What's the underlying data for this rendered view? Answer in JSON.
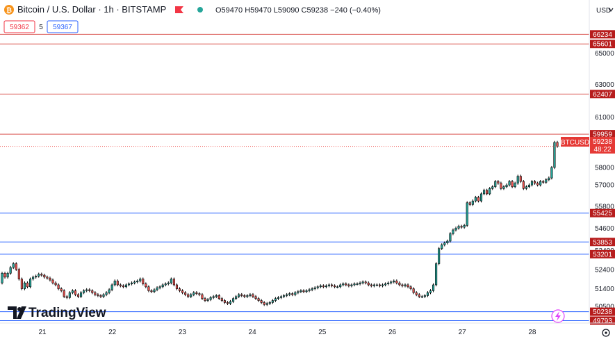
{
  "header": {
    "symbol_title": "Bitcoin / U.S. Dollar · 1h · BITSTAMP",
    "ohlc": "O59470 H59470 L59090 C59238 −240 (−0.40%)",
    "currency": "USD",
    "bid": "59362",
    "spread": "5",
    "ask": "59367"
  },
  "watermark": {
    "text": "TradingView"
  },
  "price_label": {
    "symbol": "BTCUSD",
    "value": "59238",
    "countdown": "48:22"
  },
  "colors": {
    "up": "#26a69a",
    "down": "#ef5350",
    "candle_body": "#ffffff",
    "wick": "#000000",
    "resistance": "#d9534f",
    "support": "#2962ff",
    "label_bg": "#b71c1c",
    "price_label_bg": "#e53935"
  },
  "chart_data": {
    "type": "candlestick",
    "title": "Bitcoin / U.S. Dollar · 1h · BITSTAMP",
    "y_axis": {
      "scale": "log",
      "range": [
        49500,
        67500
      ],
      "tick_labels": [
        "65000",
        "63000",
        "61000",
        "58000",
        "57000",
        "55800",
        "54600",
        "53400",
        "52400",
        "51400",
        "50500"
      ]
    },
    "x_axis": {
      "tick_labels": [
        "21",
        "22",
        "23",
        "24",
        "25",
        "26",
        "27",
        "28"
      ]
    },
    "levels": [
      {
        "value": "66234",
        "kind": "resistance"
      },
      {
        "value": "65601",
        "kind": "resistance"
      },
      {
        "value": "62407",
        "kind": "resistance"
      },
      {
        "value": "59959",
        "kind": "resistance"
      },
      {
        "value": "55425",
        "kind": "support"
      },
      {
        "value": "53853",
        "kind": "support"
      },
      {
        "value": "53201",
        "kind": "support"
      },
      {
        "value": "50238",
        "kind": "support"
      },
      {
        "value": "49793",
        "kind": "support"
      }
    ],
    "closes": [
      52200,
      52000,
      52200,
      52500,
      52700,
      52400,
      51900,
      51400,
      51700,
      51500,
      51900,
      52000,
      52050,
      52150,
      52100,
      52000,
      51950,
      51850,
      51700,
      51600,
      51400,
      51300,
      51000,
      50950,
      51200,
      51300,
      51100,
      51000,
      51200,
      51300,
      51350,
      51300,
      51200,
      51100,
      51050,
      51000,
      51100,
      51200,
      51350,
      51600,
      51800,
      51600,
      51550,
      51500,
      51600,
      51650,
      51700,
      51750,
      51800,
      51900,
      51650,
      51500,
      51300,
      51250,
      51350,
      51450,
      51500,
      51600,
      51650,
      51700,
      51900,
      51600,
      51400,
      51300,
      51200,
      51100,
      51000,
      51100,
      51200,
      51150,
      51100,
      50900,
      50800,
      50850,
      50950,
      51000,
      51050,
      50900,
      50800,
      50700,
      50650,
      50750,
      50900,
      51000,
      51100,
      51050,
      51000,
      51050,
      51100,
      51000,
      50900,
      50800,
      50700,
      50600,
      50650,
      50700,
      50800,
      50900,
      50950,
      51000,
      51050,
      51100,
      51150,
      51100,
      51200,
      51250,
      51300,
      51250,
      51300,
      51350,
      51400,
      51450,
      51500,
      51550,
      51500,
      51550,
      51600,
      51550,
      51500,
      51500,
      51600,
      51650,
      51600,
      51550,
      51600,
      51650,
      51650,
      51700,
      51750,
      51700,
      51600,
      51550,
      51600,
      51600,
      51550,
      51600,
      51650,
      51700,
      51750,
      51800,
      51700,
      51600,
      51550,
      51600,
      51500,
      51400,
      51200,
      51100,
      51000,
      51000,
      51050,
      51200,
      51300,
      51600,
      52700,
      53500,
      53700,
      53800,
      53900,
      54300,
      54500,
      54600,
      54700,
      54650,
      54750,
      56000,
      55900,
      56100,
      56300,
      56100,
      56500,
      56700,
      56500,
      56800,
      56900,
      57200,
      57100,
      56800,
      56900,
      57000,
      57200,
      56900,
      57100,
      57500,
      57200,
      56800,
      56900,
      57000,
      57200,
      57100,
      57000,
      57200,
      57150,
      57300,
      57400,
      58000,
      59470,
      59238
    ],
    "last_price": "59238"
  }
}
